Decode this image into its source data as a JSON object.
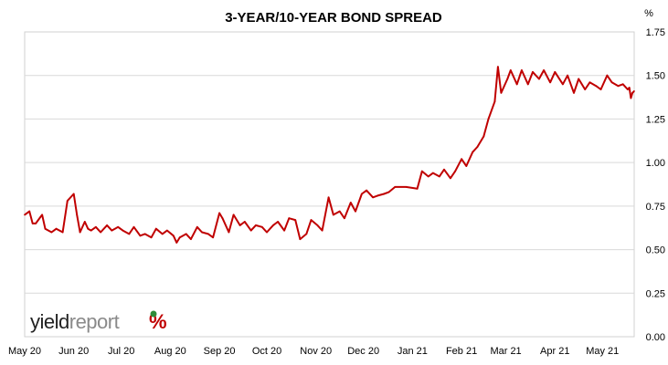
{
  "chart_data": {
    "type": "line",
    "title": "3-YEAR/10-YEAR BOND SPREAD",
    "y_unit": "%",
    "ylim": [
      0,
      1.75
    ],
    "y_ticks": [
      "0.00",
      "0.25",
      "0.50",
      "0.75",
      "1.00",
      "1.25",
      "1.50",
      "1.75"
    ],
    "y_axis_side": "right",
    "grid": true,
    "x_ticks": [
      "May 20",
      "Jun 20",
      "Jul 20",
      "Aug 20",
      "Sep 20",
      "Oct 20",
      "Nov 20",
      "Dec 20",
      "Jan 21",
      "Feb 21",
      "Mar 21",
      "Apr 21",
      "May 21"
    ],
    "series": [
      {
        "color": "#c00000",
        "x": [
          "2020-05-01",
          "2020-05-04",
          "2020-05-06",
          "2020-05-08",
          "2020-05-12",
          "2020-05-14",
          "2020-05-18",
          "2020-05-21",
          "2020-05-25",
          "2020-05-28",
          "2020-06-01",
          "2020-06-03",
          "2020-06-05",
          "2020-06-08",
          "2020-06-10",
          "2020-06-12",
          "2020-06-15",
          "2020-06-18",
          "2020-06-22",
          "2020-06-25",
          "2020-06-29",
          "2020-07-02",
          "2020-07-06",
          "2020-07-09",
          "2020-07-13",
          "2020-07-16",
          "2020-07-20",
          "2020-07-23",
          "2020-07-27",
          "2020-07-30",
          "2020-08-03",
          "2020-08-05",
          "2020-08-07",
          "2020-08-11",
          "2020-08-14",
          "2020-08-18",
          "2020-08-21",
          "2020-08-25",
          "2020-08-28",
          "2020-09-01",
          "2020-09-03",
          "2020-09-07",
          "2020-09-10",
          "2020-09-14",
          "2020-09-17",
          "2020-09-21",
          "2020-09-24",
          "2020-09-28",
          "2020-10-01",
          "2020-10-05",
          "2020-10-08",
          "2020-10-12",
          "2020-10-15",
          "2020-10-19",
          "2020-10-22",
          "2020-10-26",
          "2020-10-29",
          "2020-11-02",
          "2020-11-05",
          "2020-11-09",
          "2020-11-12",
          "2020-11-16",
          "2020-11-19",
          "2020-11-23",
          "2020-11-26",
          "2020-11-30",
          "2020-12-03",
          "2020-12-07",
          "2020-12-10",
          "2020-12-14",
          "2020-12-17",
          "2020-12-21",
          "2020-12-28",
          "2021-01-04",
          "2021-01-07",
          "2021-01-11",
          "2021-01-14",
          "2021-01-18",
          "2021-01-21",
          "2021-01-25",
          "2021-01-28",
          "2021-02-01",
          "2021-02-04",
          "2021-02-08",
          "2021-02-11",
          "2021-02-15",
          "2021-02-18",
          "2021-02-22",
          "2021-02-24",
          "2021-02-26",
          "2021-03-02",
          "2021-03-04",
          "2021-03-08",
          "2021-03-11",
          "2021-03-15",
          "2021-03-18",
          "2021-03-22",
          "2021-03-25",
          "2021-03-29",
          "2021-04-01",
          "2021-04-06",
          "2021-04-09",
          "2021-04-13",
          "2021-04-16",
          "2021-04-20",
          "2021-04-23",
          "2021-04-27",
          "2021-04-30",
          "2021-05-04",
          "2021-05-07",
          "2021-05-11",
          "2021-05-14",
          "2021-05-17",
          "2021-05-18",
          "2021-05-19",
          "2021-05-20",
          "2021-05-21"
        ],
        "y": [
          0.7,
          0.72,
          0.65,
          0.65,
          0.7,
          0.62,
          0.6,
          0.62,
          0.6,
          0.78,
          0.82,
          0.7,
          0.6,
          0.66,
          0.62,
          0.61,
          0.63,
          0.6,
          0.64,
          0.61,
          0.63,
          0.61,
          0.59,
          0.63,
          0.58,
          0.59,
          0.57,
          0.62,
          0.59,
          0.61,
          0.58,
          0.54,
          0.57,
          0.59,
          0.56,
          0.63,
          0.6,
          0.59,
          0.57,
          0.71,
          0.68,
          0.6,
          0.7,
          0.64,
          0.66,
          0.61,
          0.64,
          0.63,
          0.6,
          0.64,
          0.66,
          0.61,
          0.68,
          0.67,
          0.56,
          0.59,
          0.67,
          0.64,
          0.61,
          0.8,
          0.7,
          0.72,
          0.68,
          0.77,
          0.72,
          0.82,
          0.84,
          0.8,
          0.81,
          0.82,
          0.83,
          0.86,
          0.86,
          0.85,
          0.95,
          0.92,
          0.94,
          0.92,
          0.96,
          0.91,
          0.95,
          1.02,
          0.98,
          1.06,
          1.09,
          1.15,
          1.25,
          1.35,
          1.55,
          1.4,
          1.48,
          1.53,
          1.45,
          1.53,
          1.45,
          1.52,
          1.48,
          1.53,
          1.46,
          1.52,
          1.45,
          1.5,
          1.4,
          1.48,
          1.42,
          1.46,
          1.44,
          1.42,
          1.5,
          1.46,
          1.44,
          1.45,
          1.42,
          1.43,
          1.37,
          1.4,
          1.41
        ]
      }
    ]
  },
  "logo": {
    "text_dark": "yield",
    "text_light": "report",
    "symbol": "%"
  }
}
